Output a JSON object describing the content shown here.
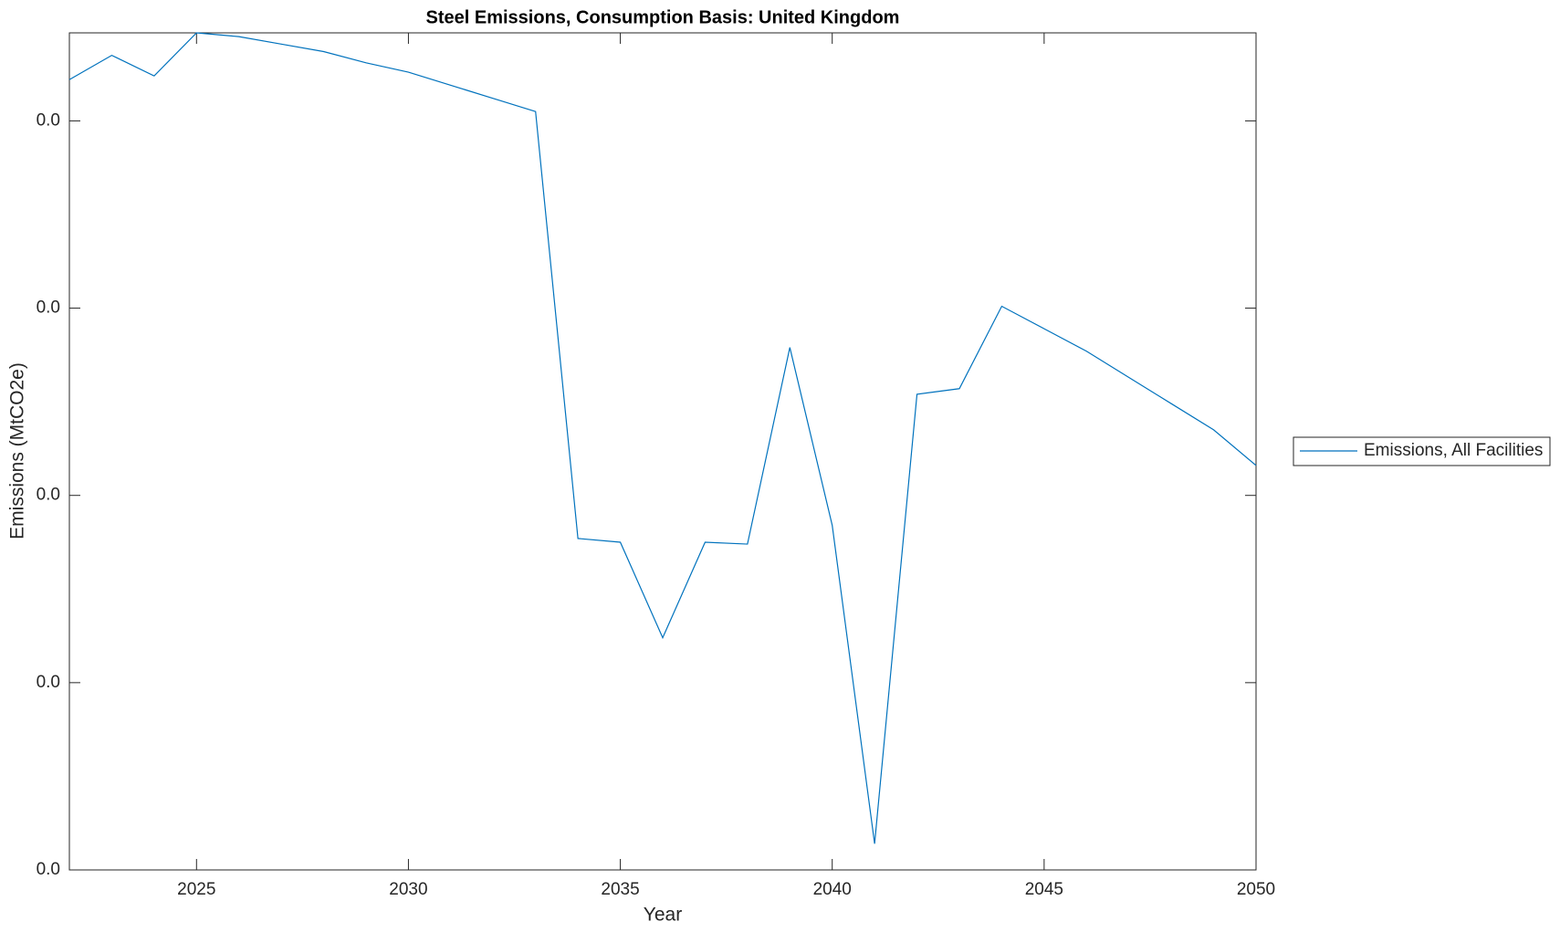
{
  "chart_data": {
    "type": "line",
    "title": "Steel Emissions, Consumption Basis: United Kingdom",
    "x_label": "Year",
    "y_label": "Emissions (MtCO2e)",
    "x": [
      2022,
      2023,
      2024,
      2025,
      2026,
      2027,
      2028,
      2029,
      2030,
      2031,
      2032,
      2033,
      2034,
      2035,
      2036,
      2037,
      2038,
      2039,
      2040,
      2041,
      2042,
      2043,
      2044,
      2045,
      2046,
      2047,
      2048,
      2049,
      2050
    ],
    "series": [
      {
        "name": "Emissions, All Facilities",
        "color": "#0072bd",
        "values": [
          0.0422,
          0.0435,
          0.0424,
          0.0447,
          0.0445,
          0.0441,
          0.0437,
          0.0431,
          0.0426,
          0.0419,
          0.0412,
          0.0405,
          0.0177,
          0.0175,
          0.0124,
          0.0175,
          0.0174,
          0.0279,
          0.0184,
          0.0014,
          0.0254,
          0.0257,
          0.0301,
          0.0289,
          0.0277,
          0.0263,
          0.0249,
          0.0235,
          0.0216
        ]
      }
    ],
    "xlim": [
      2022,
      2050
    ],
    "xticks": [
      2025,
      2030,
      2035,
      2040,
      2045,
      2050
    ],
    "ylim": [
      0,
      0.0447
    ],
    "yticks": [
      {
        "value": 0,
        "label": "0.0"
      },
      {
        "value": 0.01,
        "label": "0.0"
      },
      {
        "value": 0.02,
        "label": "0.0"
      },
      {
        "value": 0.03,
        "label": "0.0"
      },
      {
        "value": 0.04,
        "label": "0.0"
      }
    ],
    "legend": "right"
  }
}
